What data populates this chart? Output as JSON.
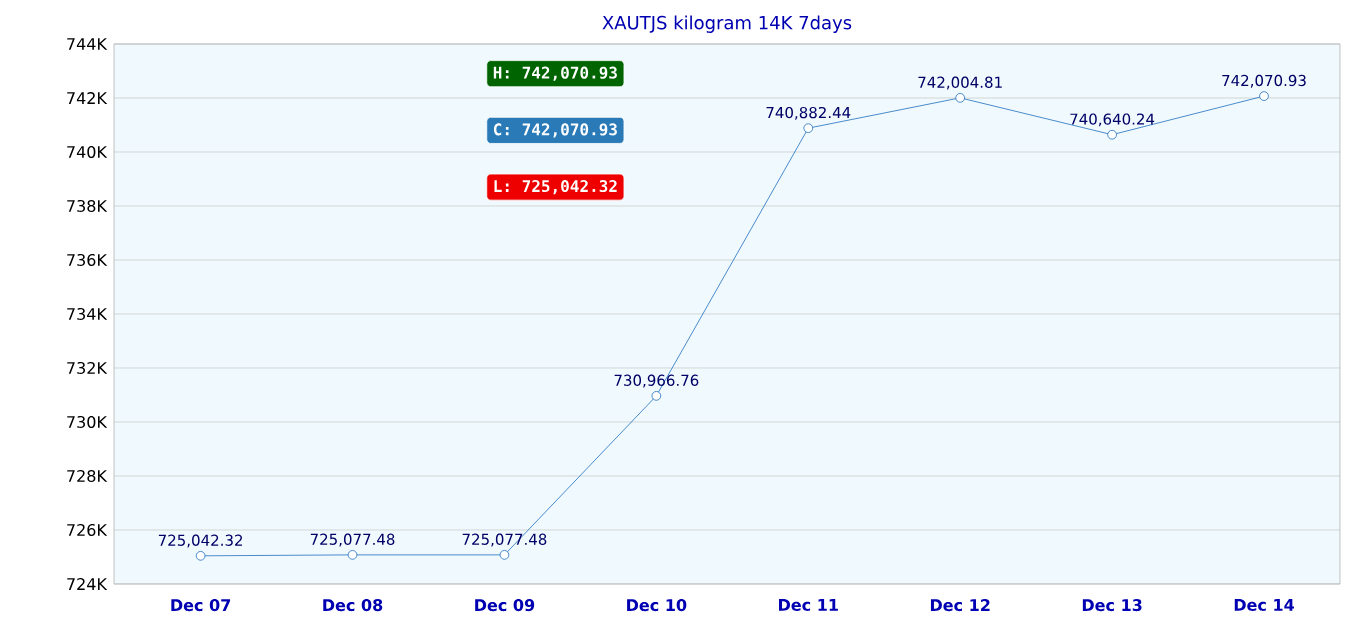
{
  "chart_data": {
    "type": "line",
    "title": "XAUTJS kilogram 14K 7days",
    "categories": [
      "Dec 07",
      "Dec 08",
      "Dec 09",
      "Dec 10",
      "Dec 11",
      "Dec 12",
      "Dec 13",
      "Dec 14"
    ],
    "values": [
      725042.32,
      725077.48,
      725077.48,
      730966.76,
      740882.44,
      742004.81,
      740640.24,
      742070.93
    ],
    "value_labels": [
      "725,042.32",
      "725,077.48",
      "725,077.48",
      "730,966.76",
      "740,882.44",
      "742,004.81",
      "740,640.24",
      "742,070.93"
    ],
    "color": "#1f6fbf",
    "marker": "circle",
    "grid": "y",
    "ylim": [
      724000,
      744000
    ],
    "yticks": [
      {
        "value": 724000,
        "label": "724K"
      },
      {
        "value": 726000,
        "label": "726K"
      },
      {
        "value": 728000,
        "label": "728K"
      },
      {
        "value": 730000,
        "label": "730K"
      },
      {
        "value": 732000,
        "label": "732K"
      },
      {
        "value": 734000,
        "label": "734K"
      },
      {
        "value": 736000,
        "label": "736K"
      },
      {
        "value": 738000,
        "label": "738K"
      },
      {
        "value": 740000,
        "label": "740K"
      },
      {
        "value": 742000,
        "label": "742K"
      },
      {
        "value": 744000,
        "label": "744K"
      }
    ],
    "annotations": [
      "H: 742,070.93",
      "C: 742,070.93",
      "L: 725,042.32"
    ]
  }
}
